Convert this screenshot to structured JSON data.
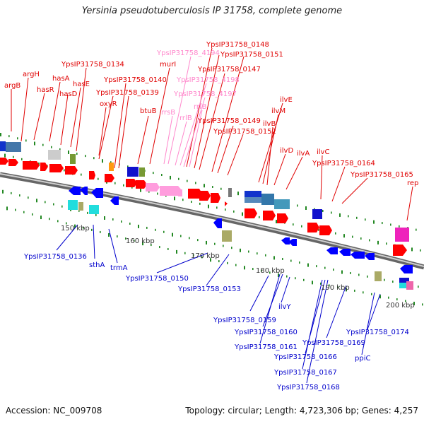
{
  "title": "Yersinia pseudotuberculosis IP 31758, complete genome",
  "footer": {
    "accession": "Accession: NC_009708",
    "summary": "Topology: circular; Length: 4,723,306 bp; Genes: 4,257"
  },
  "colors": {
    "forward_label": "#e00000",
    "forward_rna_label": "#ff88cc",
    "reverse_label": "#0000cc",
    "backbone": "#888888",
    "forward_gene": "#ff0000",
    "reverse_gene": "#0000ff",
    "rna_gene": "#ff99dd"
  },
  "scale_ticks": [
    "150 kbp",
    "160 kbp",
    "170 kbp",
    "180 kbp",
    "190 kbp",
    "200 kbp"
  ],
  "forward_labels": [
    "argB",
    "argH",
    "hasR",
    "hasA",
    "hasD",
    "hasE",
    "YpsIP31758_0134",
    "YpsIP31758_0139",
    "oxyR",
    "YpsIP31758_0140",
    "murI",
    "btuB",
    "YpsIP31758_0148",
    "YpsIP31758_0151",
    "YpsIP31758_0147",
    "YpsIP31758_0149",
    "YpsIP31758_0152",
    "ilvE",
    "ilvM",
    "ilvB",
    "ilvD",
    "ilvA",
    "ilvC",
    "YpsIP31758_0164",
    "YpsIP31758_0165",
    "rep"
  ],
  "rna_labels": [
    "YpsIP31758_4194",
    "YpsIP31758_4198",
    "YpsIP31758_4197",
    "rrsB",
    "rrlB",
    "rrfB"
  ],
  "reverse_labels": [
    "YpsIP31758_0136",
    "sthA",
    "trmA",
    "YpsIP31758_0150",
    "YpsIP31758_0153",
    "YpsIP31758_0159",
    "ilvY",
    "YpsIP31758_0160",
    "YpsIP31758_0161",
    "YpsIP31758_0166",
    "YpsIP31758_0167",
    "YpsIP31758_0168",
    "YpsIP31758_0169",
    "ppiC",
    "YpsIP31758_0174"
  ]
}
